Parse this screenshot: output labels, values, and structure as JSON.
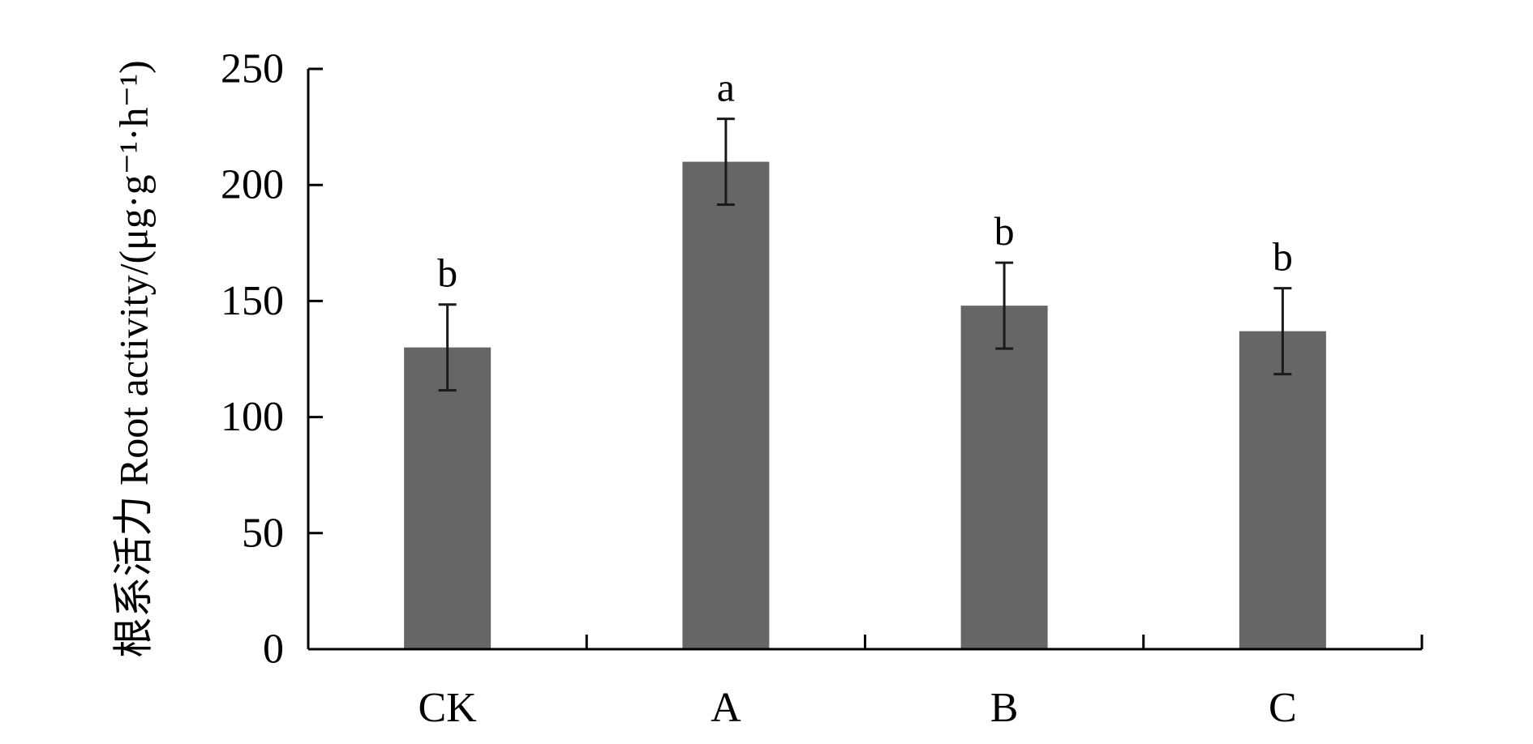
{
  "chart_data": {
    "type": "bar",
    "categories": [
      "CK",
      "A",
      "B",
      "C"
    ],
    "values": [
      130,
      210,
      148,
      137
    ],
    "errors": [
      18.5,
      18.5,
      18.5,
      18.5
    ],
    "significance": [
      "b",
      "a",
      "b",
      "b"
    ],
    "ylabel": "根系活力 Root activity/(μg·g⁻¹·h⁻¹)",
    "xlabel": "",
    "ylim": [
      0,
      250
    ],
    "yticks": [
      "0",
      "50",
      "100",
      "150",
      "200",
      "250"
    ],
    "grid": false,
    "bar_color": "#666666",
    "axis_color": "#000000"
  }
}
